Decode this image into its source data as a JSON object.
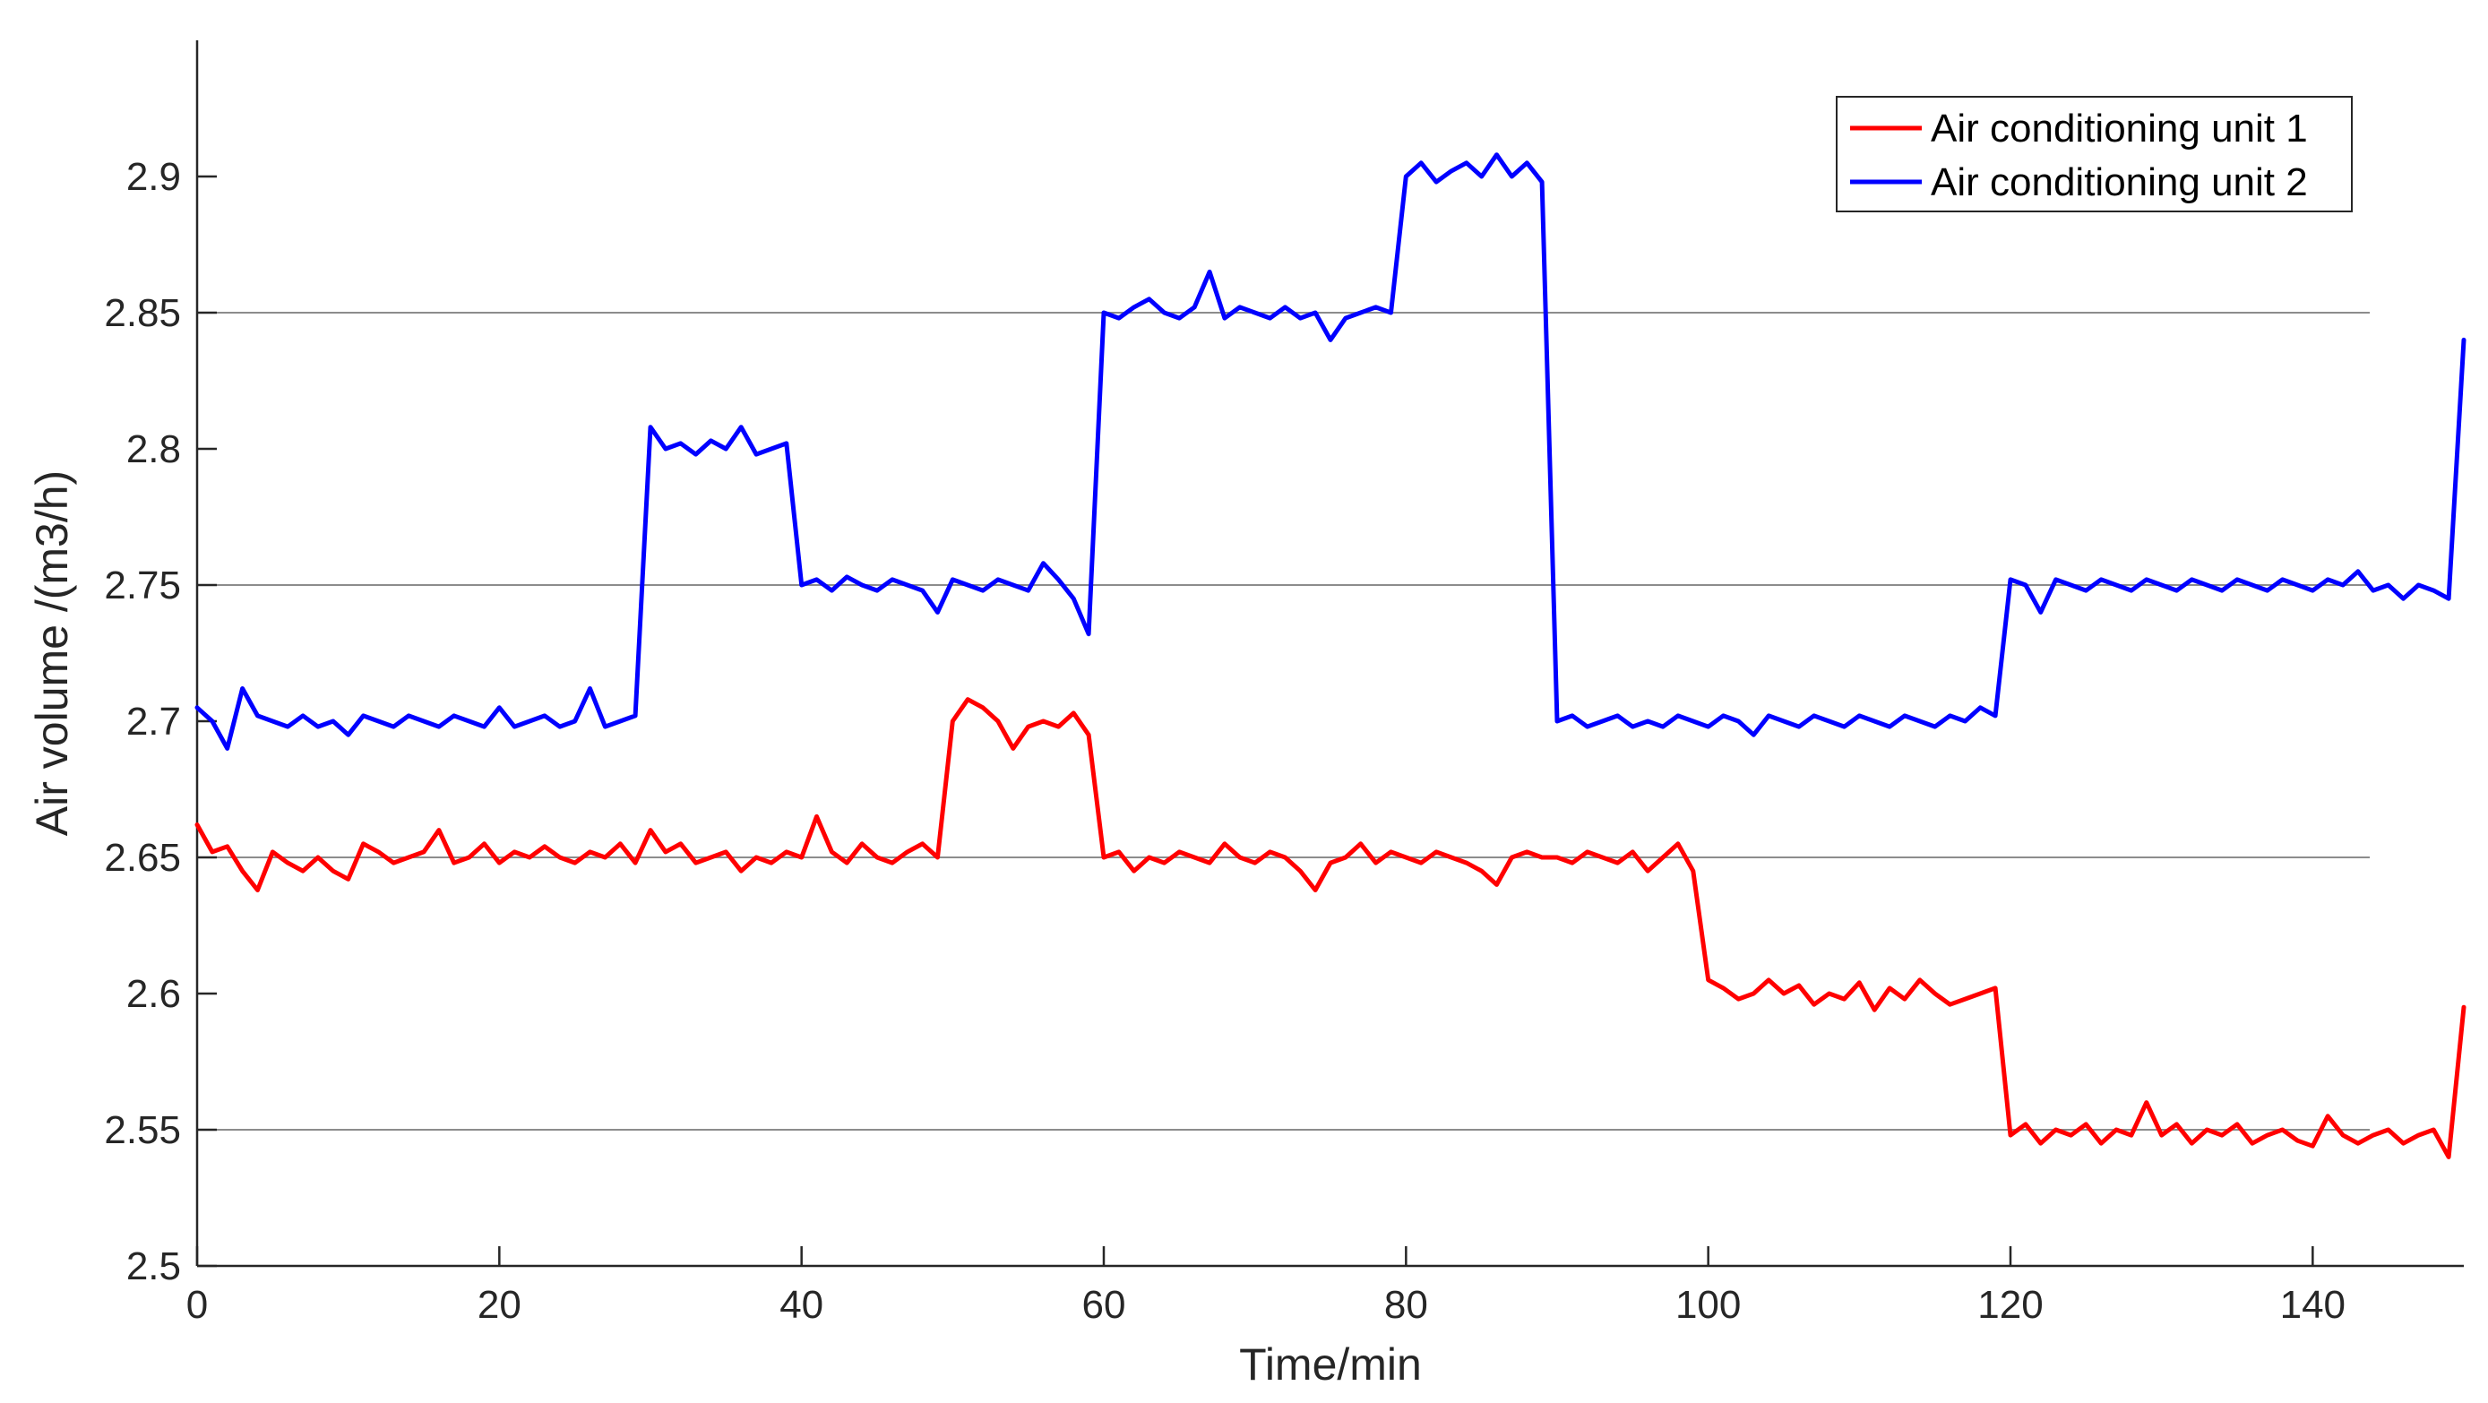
{
  "chart_data": {
    "type": "line",
    "xlabel": "Time/min",
    "ylabel": "Air volume /(m3/h)",
    "xlim": [
      0,
      150
    ],
    "ylim": [
      2.5,
      2.95
    ],
    "xticks": [
      "0",
      "20",
      "40",
      "60",
      "80",
      "100",
      "120",
      "140"
    ],
    "yticks": [
      "2.5",
      "2.55",
      "2.6",
      "2.65",
      "2.7",
      "2.75",
      "2.8",
      "2.85",
      "2.9"
    ],
    "gridlines_y": [
      2.55,
      2.65,
      2.75,
      2.85
    ],
    "legend_position": "top-right",
    "series": [
      {
        "name": "Air conditioning unit 1",
        "color": "#ff0000",
        "x": [
          0,
          1,
          2,
          3,
          4,
          5,
          6,
          7,
          8,
          9,
          10,
          11,
          12,
          13,
          14,
          15,
          16,
          17,
          18,
          19,
          20,
          21,
          22,
          23,
          24,
          25,
          26,
          27,
          28,
          29,
          30,
          31,
          32,
          33,
          34,
          35,
          36,
          37,
          38,
          39,
          40,
          41,
          42,
          43,
          44,
          45,
          46,
          47,
          48,
          49,
          50,
          51,
          52,
          53,
          54,
          55,
          56,
          57,
          58,
          59,
          60,
          61,
          62,
          63,
          64,
          65,
          66,
          67,
          68,
          69,
          70,
          71,
          72,
          73,
          74,
          75,
          76,
          77,
          78,
          79,
          80,
          81,
          82,
          83,
          84,
          85,
          86,
          87,
          88,
          89,
          90,
          91,
          92,
          93,
          94,
          95,
          96,
          97,
          98,
          99,
          100,
          101,
          102,
          103,
          104,
          105,
          106,
          107,
          108,
          109,
          110,
          111,
          112,
          113,
          114,
          115,
          116,
          117,
          118,
          119,
          120,
          121,
          122,
          123,
          124,
          125,
          126,
          127,
          128,
          129,
          130,
          131,
          132,
          133,
          134,
          135,
          136,
          137,
          138,
          139,
          140,
          141,
          142,
          143,
          144,
          145,
          146,
          147,
          148,
          149,
          150
        ],
        "values": [
          2.662,
          2.652,
          2.654,
          2.645,
          2.638,
          2.652,
          2.648,
          2.645,
          2.65,
          2.645,
          2.642,
          2.655,
          2.652,
          2.648,
          2.65,
          2.652,
          2.66,
          2.648,
          2.65,
          2.655,
          2.648,
          2.652,
          2.65,
          2.654,
          2.65,
          2.648,
          2.652,
          2.65,
          2.655,
          2.648,
          2.66,
          2.652,
          2.655,
          2.648,
          2.65,
          2.652,
          2.645,
          2.65,
          2.648,
          2.652,
          2.65,
          2.665,
          2.652,
          2.648,
          2.655,
          2.65,
          2.648,
          2.652,
          2.655,
          2.65,
          2.7,
          2.708,
          2.705,
          2.7,
          2.69,
          2.698,
          2.7,
          2.698,
          2.703,
          2.695,
          2.65,
          2.652,
          2.645,
          2.65,
          2.648,
          2.652,
          2.65,
          2.648,
          2.655,
          2.65,
          2.648,
          2.652,
          2.65,
          2.645,
          2.638,
          2.648,
          2.65,
          2.655,
          2.648,
          2.652,
          2.65,
          2.648,
          2.652,
          2.65,
          2.648,
          2.645,
          2.64,
          2.65,
          2.652,
          2.65,
          2.65,
          2.648,
          2.652,
          2.65,
          2.648,
          2.652,
          2.645,
          2.65,
          2.655,
          2.645,
          2.605,
          2.602,
          2.598,
          2.6,
          2.605,
          2.6,
          2.603,
          2.596,
          2.6,
          2.598,
          2.604,
          2.594,
          2.602,
          2.598,
          2.605,
          2.6,
          2.596,
          2.598,
          2.6,
          2.602,
          2.548,
          2.552,
          2.545,
          2.55,
          2.548,
          2.552,
          2.545,
          2.55,
          2.548,
          2.56,
          2.548,
          2.552,
          2.545,
          2.55,
          2.548,
          2.552,
          2.545,
          2.548,
          2.55,
          2.546,
          2.544,
          2.555,
          2.548,
          2.545,
          2.548,
          2.55,
          2.545,
          2.548,
          2.55,
          2.54,
          2.595
        ]
      },
      {
        "name": "Air conditioning unit 2",
        "color": "#0000ff",
        "x": [
          0,
          1,
          2,
          3,
          4,
          5,
          6,
          7,
          8,
          9,
          10,
          11,
          12,
          13,
          14,
          15,
          16,
          17,
          18,
          19,
          20,
          21,
          22,
          23,
          24,
          25,
          26,
          27,
          28,
          29,
          30,
          31,
          32,
          33,
          34,
          35,
          36,
          37,
          38,
          39,
          40,
          41,
          42,
          43,
          44,
          45,
          46,
          47,
          48,
          49,
          50,
          51,
          52,
          53,
          54,
          55,
          56,
          57,
          58,
          59,
          60,
          61,
          62,
          63,
          64,
          65,
          66,
          67,
          68,
          69,
          70,
          71,
          72,
          73,
          74,
          75,
          76,
          77,
          78,
          79,
          80,
          81,
          82,
          83,
          84,
          85,
          86,
          87,
          88,
          89,
          90,
          91,
          92,
          93,
          94,
          95,
          96,
          97,
          98,
          99,
          100,
          101,
          102,
          103,
          104,
          105,
          106,
          107,
          108,
          109,
          110,
          111,
          112,
          113,
          114,
          115,
          116,
          117,
          118,
          119,
          120,
          121,
          122,
          123,
          124,
          125,
          126,
          127,
          128,
          129,
          130,
          131,
          132,
          133,
          134,
          135,
          136,
          137,
          138,
          139,
          140,
          141,
          142,
          143,
          144,
          145,
          146,
          147,
          148,
          149,
          150
        ],
        "values": [
          2.705,
          2.7,
          2.69,
          2.712,
          2.702,
          2.7,
          2.698,
          2.702,
          2.698,
          2.7,
          2.695,
          2.702,
          2.7,
          2.698,
          2.702,
          2.7,
          2.698,
          2.702,
          2.7,
          2.698,
          2.705,
          2.698,
          2.7,
          2.702,
          2.698,
          2.7,
          2.712,
          2.698,
          2.7,
          2.702,
          2.808,
          2.8,
          2.802,
          2.798,
          2.803,
          2.8,
          2.808,
          2.798,
          2.8,
          2.802,
          2.75,
          2.752,
          2.748,
          2.753,
          2.75,
          2.748,
          2.752,
          2.75,
          2.748,
          2.74,
          2.752,
          2.75,
          2.748,
          2.752,
          2.75,
          2.748,
          2.758,
          2.752,
          2.745,
          2.732,
          2.85,
          2.848,
          2.852,
          2.855,
          2.85,
          2.848,
          2.852,
          2.865,
          2.848,
          2.852,
          2.85,
          2.848,
          2.852,
          2.848,
          2.85,
          2.84,
          2.848,
          2.85,
          2.852,
          2.85,
          2.9,
          2.905,
          2.898,
          2.902,
          2.905,
          2.9,
          2.908,
          2.9,
          2.905,
          2.898,
          2.7,
          2.702,
          2.698,
          2.7,
          2.702,
          2.698,
          2.7,
          2.698,
          2.702,
          2.7,
          2.698,
          2.702,
          2.7,
          2.695,
          2.702,
          2.7,
          2.698,
          2.702,
          2.7,
          2.698,
          2.702,
          2.7,
          2.698,
          2.702,
          2.7,
          2.698,
          2.702,
          2.7,
          2.705,
          2.702,
          2.752,
          2.75,
          2.74,
          2.752,
          2.75,
          2.748,
          2.752,
          2.75,
          2.748,
          2.752,
          2.75,
          2.748,
          2.752,
          2.75,
          2.748,
          2.752,
          2.75,
          2.748,
          2.752,
          2.75,
          2.748,
          2.752,
          2.75,
          2.755,
          2.748,
          2.75,
          2.745,
          2.75,
          2.748,
          2.745,
          2.84
        ]
      }
    ]
  }
}
